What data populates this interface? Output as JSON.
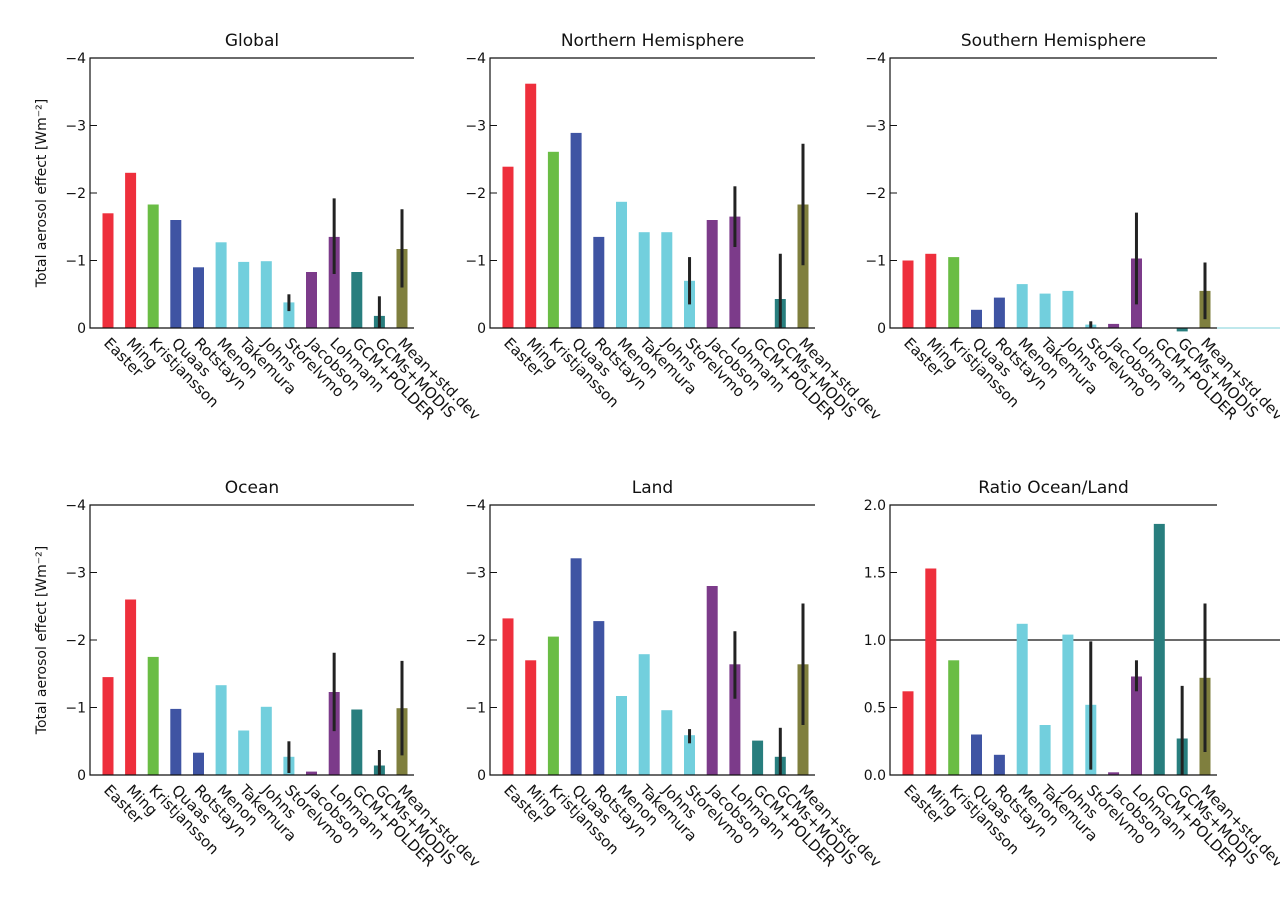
{
  "categories": [
    "Easter",
    "Ming",
    "Kristjansson",
    "Quaas",
    "Rotstayn",
    "Menon",
    "Takemura",
    "Johns",
    "Storelvmo",
    "Jacobson",
    "Lohmann",
    "GCM+POLDER",
    "GCMs+MODIS",
    "Mean+std.dev"
  ],
  "colors": [
    "#ee2f3c",
    "#ee2f3c",
    "#6abd45",
    "#3f54a3",
    "#3f54a3",
    "#72cfdd",
    "#72cfdd",
    "#72cfdd",
    "#72cfdd",
    "#7c3b8a",
    "#7c3b8a",
    "#287e7e",
    "#287e7e",
    "#7f7f3e"
  ],
  "ylabel": "Total aerosol effect [Wm⁻²]",
  "chart_data": [
    {
      "type": "bar",
      "title": "Global",
      "ylim": [
        0,
        -4
      ],
      "yticks": [
        -4,
        -3,
        -2,
        -1,
        0
      ],
      "ytick_labels": [
        "−4",
        "−3",
        "−2",
        "−1",
        "0"
      ],
      "values": [
        -1.7,
        -2.3,
        -1.83,
        -1.6,
        -0.9,
        -1.27,
        -0.98,
        -0.99,
        -0.38,
        -0.83,
        -1.35,
        -0.83,
        -0.18,
        -1.17
      ],
      "errors": [
        null,
        null,
        null,
        null,
        null,
        null,
        null,
        null,
        [
          -0.25,
          -0.5
        ],
        null,
        [
          -0.8,
          -1.92
        ],
        null,
        [
          0,
          -0.47
        ],
        [
          -0.6,
          -1.76
        ]
      ]
    },
    {
      "type": "bar",
      "title": "Northern Hemisphere",
      "ylim": [
        0,
        -4
      ],
      "yticks": [
        -4,
        -3,
        -2,
        -1,
        0
      ],
      "ytick_labels": [
        "−4",
        "−3",
        "−2",
        "−1",
        "0"
      ],
      "values": [
        -2.39,
        -3.62,
        -2.61,
        -2.89,
        -1.35,
        -1.87,
        -1.42,
        -1.42,
        -0.7,
        -1.6,
        -1.65,
        0,
        -0.43,
        -1.83
      ],
      "errors": [
        null,
        null,
        null,
        null,
        null,
        null,
        null,
        null,
        [
          -0.35,
          -1.05
        ],
        null,
        [
          -1.2,
          -2.1
        ],
        null,
        [
          0,
          -1.1
        ],
        [
          -0.93,
          -2.73
        ]
      ]
    },
    {
      "type": "bar",
      "title": "Southern Hemisphere",
      "ylim": [
        0,
        -4
      ],
      "yticks": [
        -4,
        -3,
        -2,
        -1,
        0
      ],
      "ytick_labels": [
        "−4",
        "−3",
        "−2",
        "−1",
        "0"
      ],
      "values": [
        -1.0,
        -1.1,
        -1.05,
        -0.27,
        -0.45,
        -0.65,
        -0.51,
        -0.55,
        -0.05,
        -0.06,
        -1.03,
        0,
        0.05,
        -0.55
      ],
      "errors": [
        null,
        null,
        null,
        null,
        null,
        null,
        null,
        null,
        [
          0,
          -0.1
        ],
        null,
        [
          -0.35,
          -1.71
        ],
        null,
        null,
        [
          -0.13,
          -0.97
        ]
      ]
    },
    {
      "type": "bar",
      "title": "Ocean",
      "ylim": [
        0,
        -4
      ],
      "yticks": [
        -4,
        -3,
        -2,
        -1,
        0
      ],
      "ytick_labels": [
        "−4",
        "−3",
        "−2",
        "−1",
        "0"
      ],
      "values": [
        -1.45,
        -2.6,
        -1.75,
        -0.98,
        -0.33,
        -1.33,
        -0.66,
        -1.01,
        -0.27,
        -0.05,
        -1.23,
        -0.97,
        -0.14,
        -0.99
      ],
      "errors": [
        null,
        null,
        null,
        null,
        null,
        null,
        null,
        null,
        [
          -0.03,
          -0.5
        ],
        null,
        [
          -0.65,
          -1.81
        ],
        null,
        [
          0,
          -0.37
        ],
        [
          -0.29,
          -1.69
        ]
      ]
    },
    {
      "type": "bar",
      "title": "Land",
      "ylim": [
        0,
        -4
      ],
      "yticks": [
        -4,
        -3,
        -2,
        -1,
        0
      ],
      "ytick_labels": [
        "−4",
        "−3",
        "−2",
        "−1",
        "0"
      ],
      "values": [
        -2.32,
        -1.7,
        -2.05,
        -3.21,
        -2.28,
        -1.17,
        -1.79,
        -0.96,
        -0.59,
        -2.8,
        -1.64,
        -0.51,
        -0.27,
        -1.64
      ],
      "errors": [
        null,
        null,
        null,
        null,
        null,
        null,
        null,
        null,
        [
          -0.47,
          -0.68
        ],
        null,
        [
          -1.13,
          -2.13
        ],
        null,
        [
          0,
          -0.7
        ],
        [
          -0.74,
          -2.54
        ]
      ]
    },
    {
      "type": "bar",
      "title": "Ratio Ocean/Land",
      "ylim": [
        0,
        2.0
      ],
      "yticks": [
        0,
        0.5,
        1.0,
        1.5,
        2.0
      ],
      "ytick_labels": [
        "0.0",
        "0.5",
        "1.0",
        "1.5",
        "2.0"
      ],
      "reference_line": 1.0,
      "values": [
        0.62,
        1.53,
        0.85,
        0.3,
        0.15,
        1.12,
        0.37,
        1.04,
        0.52,
        0.02,
        0.73,
        1.86,
        0.27,
        0.72
      ],
      "errors": [
        null,
        null,
        null,
        null,
        null,
        null,
        null,
        null,
        [
          0.04,
          0.99
        ],
        null,
        [
          0.62,
          0.85
        ],
        null,
        [
          0,
          0.66
        ],
        [
          0.17,
          1.27
        ]
      ]
    }
  ]
}
